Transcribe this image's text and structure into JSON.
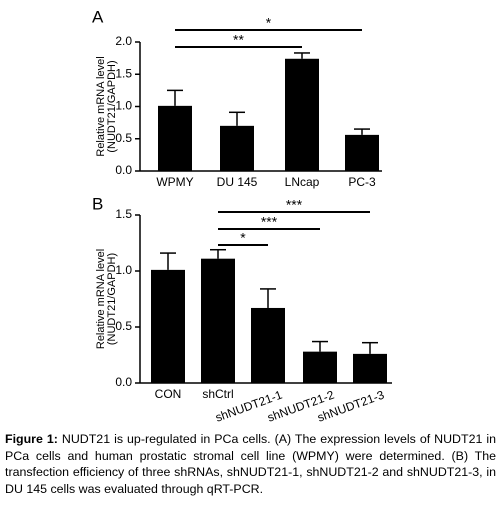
{
  "chart_data": [
    {
      "type": "bar",
      "panel_label": "A",
      "ylabel": [
        "Relative mRNA level",
        "(NUDT21/GAPDH)"
      ],
      "categories": [
        "WPMY",
        "DU 145",
        "LNcap",
        "PC-3"
      ],
      "values": [
        1.01,
        0.7,
        1.74,
        0.56
      ],
      "errors": [
        0.24,
        0.21,
        0.09,
        0.09
      ],
      "color": "#000000",
      "ylim": [
        0,
        2.0
      ],
      "yticks": [
        {
          "value": 0,
          "label": "0.0"
        },
        {
          "value": 0.5,
          "label": "0.5"
        },
        {
          "value": 1.0,
          "label": "1.0"
        },
        {
          "value": 1.5,
          "label": "1.5"
        },
        {
          "value": 2.0,
          "label": "2.0"
        }
      ],
      "significance": [
        {
          "label": "*",
          "from": 0,
          "to": 3
        },
        {
          "label": "**",
          "from": 0,
          "to": 2
        }
      ]
    },
    {
      "type": "bar",
      "panel_label": "B",
      "ylabel": [
        "Relative mRNA level",
        "(NUDT21/GAPDH)"
      ],
      "categories": [
        "CON",
        "shCtrl",
        "shNUDT21-1",
        "shNUDT21-2",
        "shNUDT21-3"
      ],
      "values": [
        1.01,
        1.11,
        0.67,
        0.28,
        0.26
      ],
      "errors": [
        0.15,
        0.08,
        0.17,
        0.09,
        0.1
      ],
      "color": "#000000",
      "ylim": [
        0,
        1.5
      ],
      "yticks": [
        {
          "value": 0,
          "label": "0.0"
        },
        {
          "value": 0.5,
          "label": "0.5"
        },
        {
          "value": 1.0,
          "label": "1.0"
        },
        {
          "value": 1.5,
          "label": "1.5"
        }
      ],
      "significance": [
        {
          "label": "***",
          "from": 1,
          "to": 4
        },
        {
          "label": "***",
          "from": 1,
          "to": 3
        },
        {
          "label": "*",
          "from": 1,
          "to": 2
        }
      ]
    }
  ],
  "caption": {
    "label": "Figure 1:",
    "text": " NUDT21 is up-regulated in PCa cells. (A) The expression levels of NUDT21 in PCa cells and human prostatic stromal cell line (WPMY) were determined. (B) The transfection efficiency of three shRNAs, shNUDT21-1, shNUDT21-2 and shNUDT21-3, in DU 145 cells was evaluated through qRT-PCR."
  }
}
